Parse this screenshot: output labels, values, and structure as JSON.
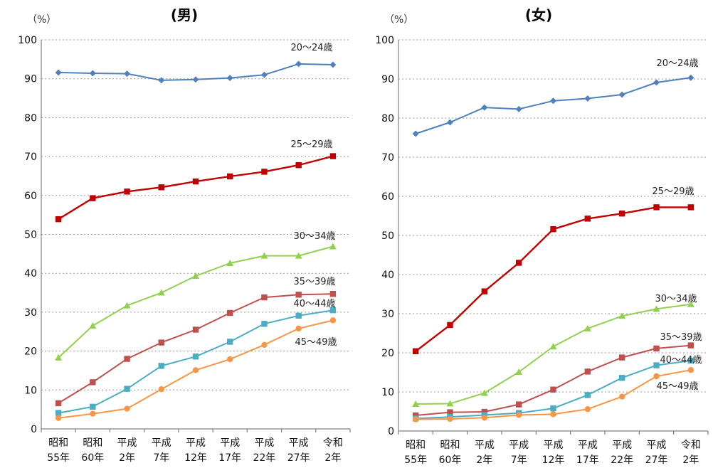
{
  "chart_data": [
    {
      "type": "line",
      "title": "(男)",
      "unit_label": "（%）",
      "ylim": [
        0,
        100
      ],
      "yticks": [
        0,
        10,
        20,
        30,
        40,
        50,
        60,
        70,
        80,
        90,
        100
      ],
      "grid": "horizontal dashed",
      "categories": [
        [
          "昭和",
          "55年"
        ],
        [
          "昭和",
          "60年"
        ],
        [
          "平成",
          "2年"
        ],
        [
          "平成",
          "7年"
        ],
        [
          "平成",
          "12年"
        ],
        [
          "平成",
          "17年"
        ],
        [
          "平成",
          "22年"
        ],
        [
          "平成",
          "27年"
        ],
        [
          "令和",
          "2年"
        ]
      ],
      "series": [
        {
          "name": "20～24歳",
          "color": "#4f81bd",
          "marker": "diamond",
          "values": [
            91.6,
            91.4,
            91.3,
            89.6,
            89.8,
            90.2,
            91.0,
            93.8,
            93.6
          ]
        },
        {
          "name": "25～29歳",
          "color": "#c00000",
          "marker": "square",
          "values": [
            53.9,
            59.3,
            61.0,
            62.1,
            63.6,
            64.9,
            66.1,
            67.8,
            70.1
          ]
        },
        {
          "name": "30～34歳",
          "color": "#92d050",
          "marker": "triangle",
          "values": [
            18.3,
            26.5,
            31.7,
            35.0,
            39.3,
            42.6,
            44.5,
            44.5,
            46.9
          ]
        },
        {
          "name": "35～39歳",
          "color": "#c0504d",
          "marker": "square",
          "values": [
            6.6,
            12.0,
            18.0,
            22.2,
            25.5,
            29.8,
            33.8,
            34.5,
            34.7
          ]
        },
        {
          "name": "40～44歳",
          "color": "#4bacc6",
          "marker": "square",
          "values": [
            4.1,
            5.7,
            10.3,
            16.2,
            18.6,
            22.4,
            27.0,
            29.1,
            30.5
          ]
        },
        {
          "name": "45～49歳",
          "color": "#f79646",
          "marker": "circle",
          "values": [
            2.8,
            3.9,
            5.2,
            10.2,
            15.1,
            17.9,
            21.6,
            25.8,
            27.9
          ]
        }
      ]
    },
    {
      "type": "line",
      "title": "(女)",
      "unit_label": "（%）",
      "ylim": [
        0,
        100
      ],
      "yticks": [
        0,
        10,
        20,
        30,
        40,
        50,
        60,
        70,
        80,
        90,
        100
      ],
      "grid": "horizontal dashed",
      "categories": [
        [
          "昭和",
          "55年"
        ],
        [
          "昭和",
          "60年"
        ],
        [
          "平成",
          "2年"
        ],
        [
          "平成",
          "7年"
        ],
        [
          "平成",
          "12年"
        ],
        [
          "平成",
          "17年"
        ],
        [
          "平成",
          "22年"
        ],
        [
          "平成",
          "27年"
        ],
        [
          "令和",
          "2年"
        ]
      ],
      "series": [
        {
          "name": "20～24歳",
          "color": "#4f81bd",
          "marker": "diamond",
          "values": [
            76.0,
            78.9,
            82.7,
            82.3,
            84.4,
            85.0,
            86.0,
            89.1,
            90.3
          ]
        },
        {
          "name": "25～29歳",
          "color": "#c00000",
          "marker": "square",
          "values": [
            20.4,
            27.1,
            35.7,
            43.0,
            51.6,
            54.3,
            55.6,
            57.2,
            57.2
          ]
        },
        {
          "name": "30～34歳",
          "color": "#92d050",
          "marker": "triangle",
          "values": [
            6.9,
            7.0,
            9.7,
            15.1,
            21.6,
            26.2,
            29.4,
            31.2,
            32.4
          ]
        },
        {
          "name": "35～39歳",
          "color": "#c0504d",
          "marker": "square",
          "values": [
            4.0,
            4.8,
            4.9,
            6.8,
            10.6,
            15.2,
            18.8,
            21.1,
            21.9
          ]
        },
        {
          "name": "40～44歳",
          "color": "#4bacc6",
          "marker": "square",
          "values": [
            3.2,
            3.6,
            4.1,
            4.6,
            5.8,
            9.2,
            13.6,
            16.8,
            18.0
          ]
        },
        {
          "name": "45～49歳",
          "color": "#f79646",
          "marker": "circle",
          "values": [
            3.0,
            3.1,
            3.4,
            4.1,
            4.3,
            5.6,
            8.8,
            14.0,
            15.6
          ]
        }
      ]
    }
  ]
}
